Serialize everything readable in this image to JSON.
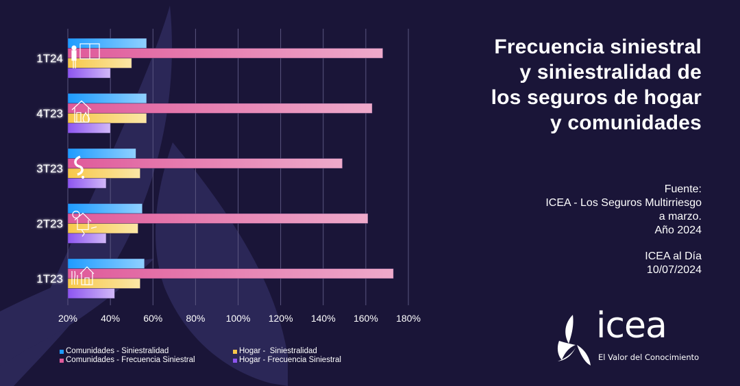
{
  "title": {
    "lines": [
      "Frecuencia siniestral",
      "y siniestralidad de",
      "los seguros de hogar",
      "y comunidades"
    ]
  },
  "source": {
    "lines": [
      "Fuente:",
      "ICEA - Los Seguros Multirriesgo",
      "a marzo.",
      "Año 2024"
    ],
    "publication": "ICEA al Día",
    "date": "10/07/2024"
  },
  "logo": {
    "wordmark": "icea",
    "tagline": "El Valor del Conocimiento"
  },
  "colors": {
    "background": "#1a1538",
    "shape": "#2b2757",
    "grid": "#5b5680",
    "comunidades_siniestralidad": [
      "#1e9bff",
      "#8fd0ff"
    ],
    "comunidades_frecuencia": [
      "#df5a9a",
      "#eeaacb"
    ],
    "hogar_siniestralidad": [
      "#f7c84a",
      "#fbe6a6"
    ],
    "hogar_frecuencia": [
      "#8d55f0",
      "#d1b8f8"
    ]
  },
  "chart_data": {
    "type": "bar",
    "orientation": "horizontal",
    "title": "Frecuencia siniestral y siniestralidad de los seguros de hogar y comunidades",
    "categories": [
      "1T24",
      "4T23",
      "3T23",
      "2T23",
      "1T23"
    ],
    "category_icons": [
      "window-damage-icon",
      "house-fire-icon",
      "water-pipe-leak-icon",
      "house-storm-icon",
      "house-vandalism-icon"
    ],
    "series": [
      {
        "name": "Comunidades - Siniestralidad",
        "color_key": "comunidades_siniestralidad",
        "values": [
          57,
          57,
          52,
          55,
          56
        ]
      },
      {
        "name": "Comunidades - Frecuencia Siniestral",
        "color_key": "comunidades_frecuencia",
        "values": [
          168,
          163,
          149,
          161,
          173
        ]
      },
      {
        "name": "Hogar -  Siniestralidad",
        "color_key": "hogar_siniestralidad",
        "values": [
          50,
          57,
          54,
          53,
          54
        ]
      },
      {
        "name": "Hogar - Frecuencia Siniestral",
        "color_key": "hogar_frecuencia",
        "values": [
          40,
          40,
          38,
          38,
          42
        ]
      }
    ],
    "xlim": [
      20,
      180
    ],
    "xticks": [
      20,
      40,
      60,
      80,
      100,
      120,
      140,
      160,
      180
    ],
    "xtick_labels": [
      "20%",
      "40%",
      "60%",
      "80%",
      "100%",
      "120%",
      "140%",
      "160%",
      "180%"
    ],
    "xlabel": "",
    "ylabel": "",
    "grid": true,
    "legend_position": "bottom"
  }
}
